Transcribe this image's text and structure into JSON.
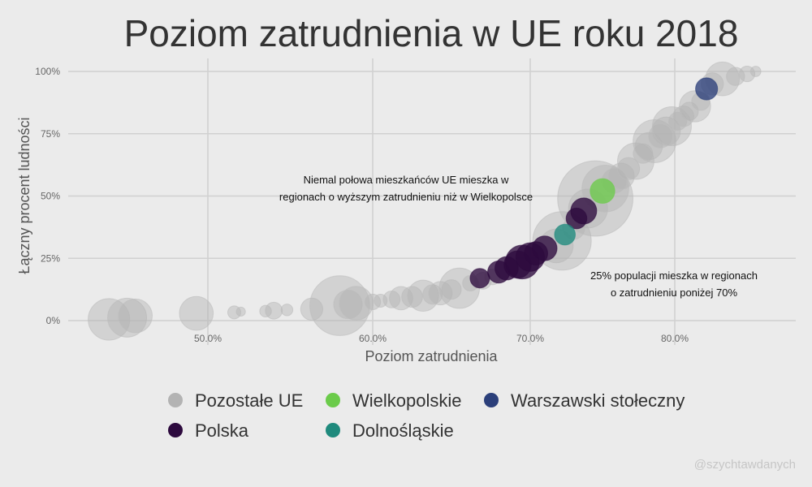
{
  "chart_data": {
    "type": "scatter",
    "title": "Poziom zatrudnienia w UE roku 2018",
    "xlabel": "Poziom zatrudnienia",
    "ylabel": "Łączny procent ludności",
    "x_ticks": [
      {
        "value": 50,
        "label": "50.0%"
      },
      {
        "value": 60,
        "label": "60.0%"
      },
      {
        "value": 70,
        "label": "70.0%"
      },
      {
        "value": 80,
        "label": "80.0%"
      }
    ],
    "y_ticks": [
      {
        "value": 0,
        "label": "0%"
      },
      {
        "value": 25,
        "label": "25%"
      },
      {
        "value": 50,
        "label": "50%"
      },
      {
        "value": 75,
        "label": "75%"
      },
      {
        "value": 100,
        "label": "100%"
      }
    ],
    "grid": true,
    "legend_position": "bottom",
    "annotations": [
      {
        "lines": [
          "Niemal połowa mieszkańców UE mieszka w",
          "regionach o wyższym zatrudnieniu niż w Wielkopolsce"
        ]
      },
      {
        "lines": [
          "25% populacji mieszka w regionach",
          "o zatrudnieniu poniżej 70%"
        ]
      }
    ],
    "series": [
      {
        "name": "Pozostałe UE",
        "color": "#b3b3b3",
        "points": [
          [
            44.0,
            0.5,
            3.2
          ],
          [
            45.1,
            1.2,
            3.0
          ],
          [
            45.6,
            1.9,
            2.6
          ],
          [
            49.3,
            2.9,
            2.6
          ],
          [
            51.6,
            3.3,
            1.0
          ],
          [
            52.0,
            3.6,
            0.7
          ],
          [
            53.5,
            3.8,
            0.9
          ],
          [
            54.0,
            4.0,
            1.3
          ],
          [
            54.8,
            4.3,
            0.9
          ],
          [
            56.3,
            4.6,
            1.7
          ],
          [
            58.0,
            6.0,
            4.6
          ],
          [
            58.5,
            6.5,
            2.2
          ],
          [
            59.0,
            7.0,
            2.6
          ],
          [
            60.0,
            7.5,
            1.2
          ],
          [
            60.5,
            8.0,
            1.0
          ],
          [
            61.2,
            8.5,
            1.3
          ],
          [
            61.8,
            9.0,
            1.8
          ],
          [
            62.5,
            9.5,
            1.6
          ],
          [
            63.2,
            10.0,
            2.4
          ],
          [
            63.8,
            10.5,
            1.5
          ],
          [
            64.3,
            11.0,
            1.8
          ],
          [
            65.0,
            12.5,
            1.5
          ],
          [
            65.5,
            13.0,
            3.1
          ],
          [
            66.2,
            15.0,
            1.2
          ],
          [
            67.0,
            16.0,
            1.3
          ],
          [
            67.6,
            17.5,
            1.2
          ],
          [
            71.8,
            30.0,
            2.6
          ],
          [
            72.2,
            32.0,
            4.5
          ],
          [
            73.0,
            37.0,
            1.7
          ],
          [
            74.0,
            45.0,
            3.0
          ],
          [
            74.5,
            49.0,
            5.8
          ],
          [
            75.2,
            53.0,
            3.6
          ],
          [
            75.8,
            56.0,
            1.9
          ],
          [
            76.3,
            58.0,
            2.0
          ],
          [
            76.8,
            61.0,
            1.7
          ],
          [
            77.3,
            64.0,
            2.8
          ],
          [
            77.8,
            67.0,
            1.5
          ],
          [
            78.2,
            70.0,
            2.1
          ],
          [
            78.6,
            72.0,
            3.3
          ],
          [
            79.0,
            74.0,
            1.8
          ],
          [
            79.4,
            76.0,
            2.2
          ],
          [
            79.8,
            78.0,
            3.0
          ],
          [
            80.2,
            80.0,
            1.4
          ],
          [
            80.6,
            82.0,
            1.6
          ],
          [
            81.0,
            84.0,
            1.4
          ],
          [
            81.4,
            86.0,
            2.4
          ],
          [
            81.8,
            88.0,
            1.4
          ],
          [
            82.6,
            95.0,
            1.7
          ],
          [
            83.3,
            97.0,
            2.6
          ],
          [
            84.2,
            98.0,
            1.4
          ],
          [
            85.0,
            99.0,
            1.2
          ],
          [
            85.6,
            100.0,
            0.8
          ]
        ]
      },
      {
        "name": "Polska",
        "color": "#2d0a3e",
        "points": [
          [
            66.8,
            17.0,
            1.5
          ],
          [
            68.0,
            19.5,
            1.7
          ],
          [
            68.5,
            21.0,
            1.8
          ],
          [
            69.2,
            22.5,
            2.1
          ],
          [
            69.5,
            23.5,
            2.6
          ],
          [
            70.0,
            25.5,
            2.2
          ],
          [
            70.4,
            27.0,
            1.8
          ],
          [
            71.0,
            29.0,
            1.9
          ],
          [
            73.2,
            41.0,
            1.6
          ],
          [
            73.7,
            44.0,
            2.0
          ]
        ]
      },
      {
        "name": "Dolnośląskie",
        "color": "#1f8a7d",
        "points": [
          [
            72.4,
            34.5,
            1.6
          ]
        ]
      },
      {
        "name": "Wielkopolskie",
        "color": "#6bcb4a",
        "points": [
          [
            75.0,
            52.0,
            1.9
          ]
        ]
      },
      {
        "name": "Warszawski stołeczny",
        "color": "#2b3f7a",
        "points": [
          [
            82.2,
            93.0,
            1.7
          ]
        ]
      }
    ]
  },
  "credit": "@szychtawdanych"
}
